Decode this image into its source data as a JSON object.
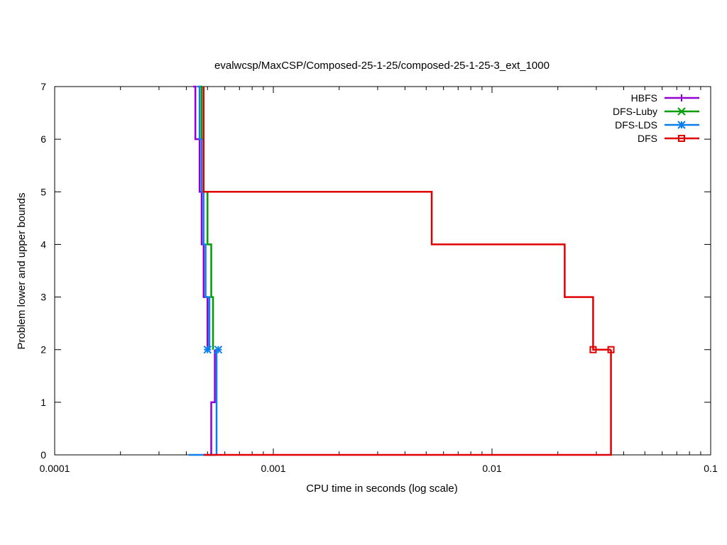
{
  "chart_data": {
    "type": "line",
    "title": "evalwcsp/MaxCSP/Composed-25-1-25/composed-25-1-25-3_ext_1000",
    "xlabel": "CPU time in seconds (log scale)",
    "ylabel": "Problem lower and upper bounds",
    "xscale": "log",
    "xlim": [
      0.0001,
      0.1
    ],
    "ylim": [
      0,
      7
    ],
    "x_ticks": [
      0.0001,
      0.001,
      0.01,
      0.1
    ],
    "x_tick_labels": [
      "0.0001",
      "0.001",
      "0.01",
      "0.1"
    ],
    "y_ticks": [
      0,
      1,
      2,
      3,
      4,
      5,
      6,
      7
    ],
    "y_tick_labels": [
      "0",
      "1",
      "2",
      "3",
      "4",
      "5",
      "6",
      "7"
    ],
    "grid": false,
    "legend_position": "top-right",
    "series": [
      {
        "name": "HBFS",
        "color": "#9400d3",
        "marker": "plus",
        "upper": [
          [
            0.00043,
            7
          ],
          [
            0.00044,
            6
          ],
          [
            0.00046,
            5
          ],
          [
            0.00047,
            4
          ],
          [
            0.00048,
            3
          ],
          [
            0.0005,
            2
          ]
        ],
        "lower": [
          [
            0.0005,
            0
          ],
          [
            0.00052,
            1
          ],
          [
            0.00054,
            2
          ]
        ],
        "markers": []
      },
      {
        "name": "DFS-Luby",
        "color": "#009e00",
        "marker": "x",
        "upper": [
          [
            0.00046,
            7
          ],
          [
            0.00047,
            6
          ],
          [
            0.00048,
            5
          ],
          [
            0.0005,
            4
          ],
          [
            0.00052,
            3
          ],
          [
            0.00053,
            2
          ]
        ],
        "lower": [],
        "markers": []
      },
      {
        "name": "DFS-LDS",
        "color": "#0a7ff0",
        "marker": "star",
        "upper": [
          [
            0.00045,
            7
          ],
          [
            0.00046,
            6
          ],
          [
            0.00047,
            5
          ],
          [
            0.00048,
            4
          ],
          [
            0.00049,
            3
          ],
          [
            0.00051,
            2
          ]
        ],
        "lower": [
          [
            0.00041,
            0
          ],
          [
            0.00054,
            0
          ],
          [
            0.00055,
            2
          ]
        ],
        "markers": [
          [
            0.0005,
            2
          ],
          [
            0.00056,
            2
          ]
        ]
      },
      {
        "name": "DFS",
        "color": "#e00000",
        "marker": "square",
        "upper": [
          [
            0.00048,
            5
          ],
          [
            0.0053,
            4
          ],
          [
            0.0215,
            3
          ],
          [
            0.029,
            2
          ],
          [
            0.035,
            2
          ]
        ],
        "lower": [
          [
            0.00048,
            0
          ],
          [
            0.035,
            0
          ],
          [
            0.035,
            2
          ]
        ],
        "markers": [
          [
            0.029,
            2
          ],
          [
            0.035,
            2
          ]
        ]
      }
    ]
  }
}
